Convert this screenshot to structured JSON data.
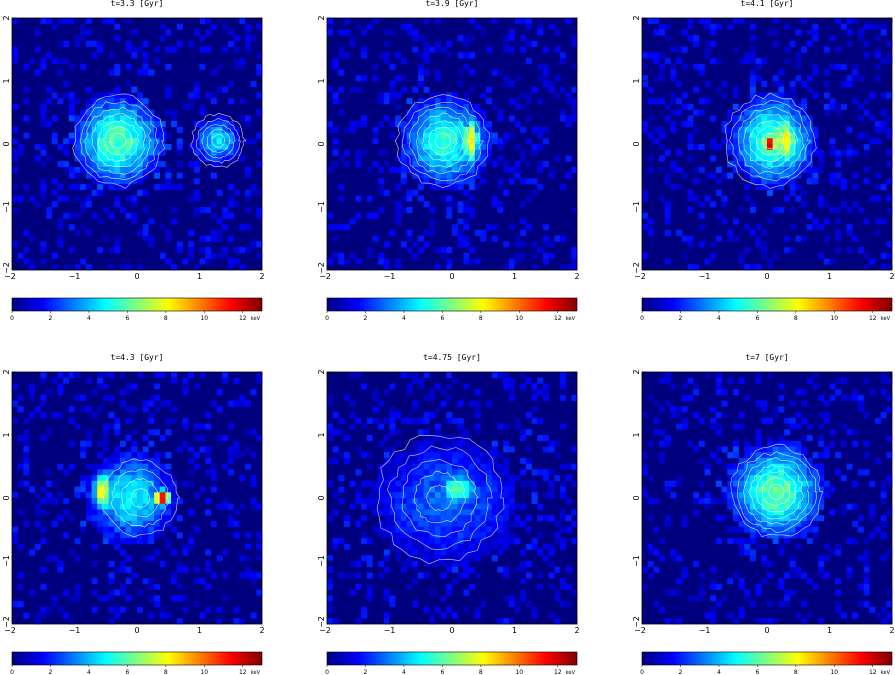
{
  "chart_data": {
    "type": "heatmap",
    "description_colormap": "jet",
    "xlim": [
      -2,
      2
    ],
    "ylim": [
      -2,
      2
    ],
    "x_ticks": [
      -1,
      0,
      1,
      2
    ],
    "x_tick_labels": [
      "−1",
      "0",
      "1",
      "2"
    ],
    "y_ticks": [
      -1,
      0,
      1,
      2
    ],
    "y_tick_labels": [
      "−1",
      "0",
      "1",
      "2"
    ],
    "colorbar": {
      "range": [
        0,
        13
      ],
      "ticks": [
        0,
        2,
        4,
        6,
        8,
        10,
        12
      ],
      "tick_labels": [
        "0",
        "2",
        "4",
        "6",
        "8",
        "10",
        "12"
      ],
      "unit": "keV"
    },
    "panels": [
      {
        "title": "t=3.3 [Gyr]",
        "blobs": [
          {
            "cx": -0.3,
            "cy": 0.05,
            "peak": 6.0,
            "rx": 0.75,
            "ry": 0.75
          },
          {
            "cx": 1.3,
            "cy": 0.05,
            "peak": 4.6,
            "rx": 0.38,
            "ry": 0.38
          }
        ],
        "contours": [
          {
            "cx": -0.3,
            "cy": 0.05,
            "radii": [
              0.12,
              0.22,
              0.32,
              0.42,
              0.52,
              0.62,
              0.72
            ]
          },
          {
            "cx": 1.3,
            "cy": 0.05,
            "radii": [
              0.1,
              0.18,
              0.26,
              0.34,
              0.42
            ]
          }
        ]
      },
      {
        "title": "t=3.9 [Gyr]",
        "blobs": [
          {
            "cx": -0.1,
            "cy": 0.05,
            "peak": 5.5,
            "rx": 0.75,
            "ry": 0.75
          },
          {
            "cx": 0.3,
            "cy": 0.05,
            "peak": 8.6,
            "rx": 0.16,
            "ry": 0.42
          }
        ],
        "contours": [
          {
            "cx": -0.15,
            "cy": 0.05,
            "radii": [
              0.12,
              0.22,
              0.32,
              0.42,
              0.52,
              0.62,
              0.72
            ]
          }
        ]
      },
      {
        "title": "t=4.1 [Gyr]",
        "blobs": [
          {
            "cx": 0.1,
            "cy": 0.05,
            "peak": 6.0,
            "rx": 0.72,
            "ry": 0.75
          },
          {
            "cx": 0.05,
            "cy": 0.0,
            "peak": 12.5,
            "rx": 0.15,
            "ry": 0.18
          },
          {
            "cx": 0.3,
            "cy": 0.05,
            "peak": 8.6,
            "rx": 0.2,
            "ry": 0.5
          }
        ],
        "contours": [
          {
            "cx": 0.05,
            "cy": 0.05,
            "radii": [
              0.12,
              0.22,
              0.32,
              0.42,
              0.52,
              0.62,
              0.72
            ]
          }
        ]
      },
      {
        "title": "t=4.3 [Gyr]",
        "blobs": [
          {
            "cx": -0.1,
            "cy": 0.0,
            "peak": 4.8,
            "rx": 0.75,
            "ry": 0.75
          },
          {
            "cx": -0.55,
            "cy": 0.1,
            "peak": 8.4,
            "rx": 0.18,
            "ry": 0.35
          },
          {
            "cx": 0.4,
            "cy": 0.0,
            "peak": 12.2,
            "rx": 0.15,
            "ry": 0.15
          }
        ],
        "contours": [
          {
            "cx": 0.05,
            "cy": 0.0,
            "radii": [
              0.15,
              0.3,
              0.45,
              0.6
            ]
          }
        ]
      },
      {
        "title": "t=4.75 [Gyr]",
        "blobs": [
          {
            "cx": -0.1,
            "cy": -0.05,
            "peak": 3.0,
            "rx": 1.25,
            "ry": 1.05
          },
          {
            "cx": 0.1,
            "cy": 0.15,
            "peak": 6.3,
            "rx": 0.35,
            "ry": 0.3
          }
        ],
        "contours": [
          {
            "cx": -0.2,
            "cy": 0.0,
            "radii": [
              0.2,
              0.4,
              0.6,
              0.8,
              1.0
            ]
          }
        ]
      },
      {
        "title": "t=7 [Gyr]",
        "blobs": [
          {
            "cx": 0.15,
            "cy": 0.1,
            "peak": 6.2,
            "rx": 0.78,
            "ry": 0.78
          }
        ],
        "contours": [
          {
            "cx": 0.15,
            "cy": 0.1,
            "radii": [
              0.12,
              0.22,
              0.32,
              0.42,
              0.52,
              0.62,
              0.72
            ]
          }
        ]
      }
    ]
  }
}
